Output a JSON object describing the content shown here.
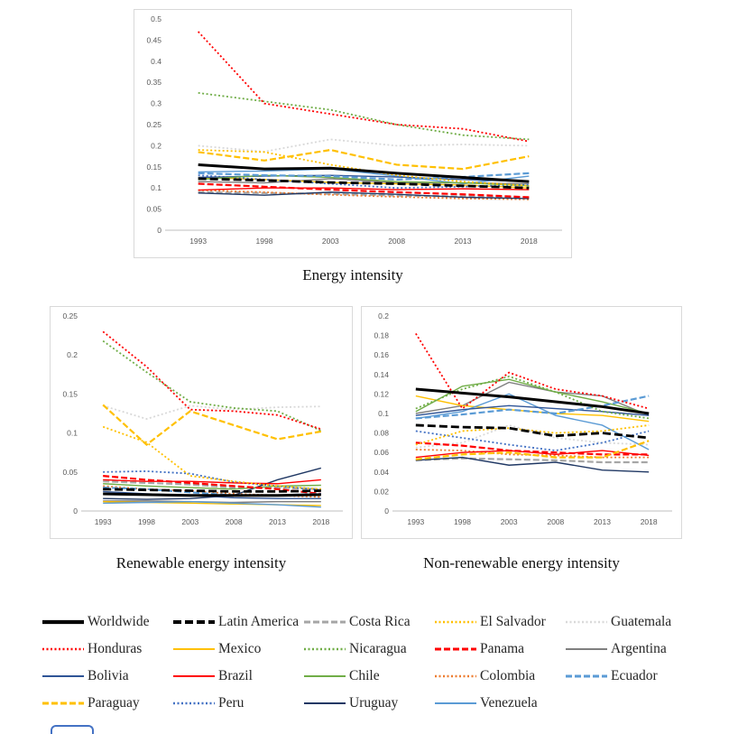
{
  "chart_data": [
    {
      "type": "line",
      "title": "Energy intensity",
      "x": [
        "1993",
        "1998",
        "2003",
        "2008",
        "2013",
        "2018"
      ],
      "ylim": [
        0,
        0.5
      ],
      "yticks": [
        0,
        0.05,
        0.1,
        0.15,
        0.2,
        0.25,
        0.3,
        0.35,
        0.4,
        0.45,
        0.5
      ],
      "ytick_labels": [
        "0",
        "0.05",
        "0.1",
        "0.15",
        "0.2",
        "0.25",
        "0.3",
        "0.35",
        "0.4",
        "0.45",
        "0.5"
      ],
      "grid": false,
      "legend_position": "none",
      "series": [
        {
          "name": "Guatemala",
          "values": [
            0.2,
            0.186,
            0.215,
            0.2,
            0.203,
            0.2
          ]
        },
        {
          "name": "Costa Rica",
          "values": [
            0.09,
            0.088,
            0.086,
            0.082,
            0.08,
            0.078
          ]
        },
        {
          "name": "Argentina",
          "values": [
            0.115,
            0.112,
            0.122,
            0.112,
            0.112,
            0.11
          ]
        },
        {
          "name": "Mexico",
          "values": [
            0.125,
            0.12,
            0.113,
            0.11,
            0.107,
            0.1
          ]
        },
        {
          "name": "Colombia",
          "values": [
            0.095,
            0.09,
            0.084,
            0.079,
            0.075,
            0.073
          ]
        },
        {
          "name": "Peru",
          "values": [
            0.13,
            0.12,
            0.11,
            0.1,
            0.103,
            0.108
          ]
        },
        {
          "name": "Uruguay",
          "values": [
            0.088,
            0.083,
            0.09,
            0.085,
            0.078,
            0.075
          ]
        },
        {
          "name": "Venezuela",
          "values": [
            0.138,
            0.14,
            0.145,
            0.128,
            0.11,
            0.128
          ]
        },
        {
          "name": "Bolivia",
          "values": [
            0.125,
            0.128,
            0.13,
            0.126,
            0.12,
            0.115
          ]
        },
        {
          "name": "Chile",
          "values": [
            0.12,
            0.13,
            0.125,
            0.115,
            0.112,
            0.105
          ]
        },
        {
          "name": "Brazil",
          "values": [
            0.095,
            0.1,
            0.1,
            0.096,
            0.098,
            0.096
          ]
        },
        {
          "name": "Panama",
          "values": [
            0.11,
            0.103,
            0.096,
            0.09,
            0.085,
            0.078
          ]
        },
        {
          "name": "Ecuador",
          "values": [
            0.135,
            0.13,
            0.128,
            0.12,
            0.126,
            0.135
          ]
        },
        {
          "name": "Paraguay",
          "values": [
            0.185,
            0.165,
            0.19,
            0.155,
            0.145,
            0.175
          ]
        },
        {
          "name": "El Salvador",
          "values": [
            0.19,
            0.185,
            0.155,
            0.13,
            0.115,
            0.105
          ]
        },
        {
          "name": "Nicaragua",
          "values": [
            0.325,
            0.305,
            0.285,
            0.25,
            0.225,
            0.215
          ]
        },
        {
          "name": "Honduras",
          "values": [
            0.47,
            0.3,
            0.275,
            0.25,
            0.24,
            0.21
          ]
        },
        {
          "name": "Latin America",
          "values": [
            0.122,
            0.118,
            0.113,
            0.11,
            0.105,
            0.1
          ]
        },
        {
          "name": "Worldwide",
          "values": [
            0.155,
            0.145,
            0.147,
            0.135,
            0.125,
            0.115
          ]
        }
      ]
    },
    {
      "type": "line",
      "title": "Renewable energy intensity",
      "x": [
        "1993",
        "1998",
        "2003",
        "2008",
        "2013",
        "2018"
      ],
      "ylim": [
        0,
        0.25
      ],
      "yticks": [
        0,
        0.05,
        0.1,
        0.15,
        0.2,
        0.25
      ],
      "ytick_labels": [
        "0",
        "0.05",
        "0.1",
        "0.15",
        "0.2",
        "0.25"
      ],
      "grid": false,
      "legend_position": "none",
      "series": [
        {
          "name": "Guatemala",
          "values": [
            0.135,
            0.118,
            0.135,
            0.13,
            0.133,
            0.134
          ]
        },
        {
          "name": "Costa Rica",
          "values": [
            0.038,
            0.036,
            0.034,
            0.03,
            0.03,
            0.028
          ]
        },
        {
          "name": "Argentina",
          "values": [
            0.013,
            0.013,
            0.012,
            0.011,
            0.012,
            0.012
          ]
        },
        {
          "name": "Mexico",
          "values": [
            0.012,
            0.011,
            0.01,
            0.009,
            0.008,
            0.007
          ]
        },
        {
          "name": "Colombia",
          "values": [
            0.032,
            0.028,
            0.026,
            0.022,
            0.02,
            0.018
          ]
        },
        {
          "name": "Peru",
          "values": [
            0.05,
            0.051,
            0.048,
            0.037,
            0.032,
            0.027
          ]
        },
        {
          "name": "Uruguay",
          "values": [
            0.016,
            0.015,
            0.016,
            0.02,
            0.04,
            0.055
          ]
        },
        {
          "name": "Venezuela",
          "values": [
            0.01,
            0.011,
            0.012,
            0.01,
            0.008,
            0.005
          ]
        },
        {
          "name": "Bolivia",
          "values": [
            0.025,
            0.022,
            0.02,
            0.017,
            0.016,
            0.016
          ]
        },
        {
          "name": "Chile",
          "values": [
            0.035,
            0.032,
            0.03,
            0.028,
            0.032,
            0.033
          ]
        },
        {
          "name": "Brazil",
          "values": [
            0.04,
            0.038,
            0.038,
            0.036,
            0.035,
            0.04
          ]
        },
        {
          "name": "Panama",
          "values": [
            0.045,
            0.04,
            0.036,
            0.032,
            0.028,
            0.022
          ]
        },
        {
          "name": "Ecuador",
          "values": [
            0.03,
            0.028,
            0.024,
            0.02,
            0.02,
            0.022
          ]
        },
        {
          "name": "Paraguay",
          "values": [
            0.136,
            0.085,
            0.128,
            0.11,
            0.092,
            0.102
          ]
        },
        {
          "name": "El Salvador",
          "values": [
            0.108,
            0.088,
            0.045,
            0.038,
            0.032,
            0.028
          ]
        },
        {
          "name": "Nicaragua",
          "values": [
            0.218,
            0.178,
            0.14,
            0.132,
            0.128,
            0.103
          ]
        },
        {
          "name": "Honduras",
          "values": [
            0.23,
            0.185,
            0.13,
            0.128,
            0.123,
            0.105
          ]
        },
        {
          "name": "Latin America",
          "values": [
            0.028,
            0.027,
            0.026,
            0.025,
            0.025,
            0.026
          ]
        },
        {
          "name": "Worldwide",
          "values": [
            0.022,
            0.021,
            0.02,
            0.02,
            0.02,
            0.021
          ]
        }
      ]
    },
    {
      "type": "line",
      "title": "Non-renewable energy intensity",
      "x": [
        "1993",
        "1998",
        "2003",
        "2008",
        "2013",
        "2018"
      ],
      "ylim": [
        0,
        0.2
      ],
      "yticks": [
        0,
        0.02,
        0.04,
        0.06,
        0.08,
        0.1,
        0.12,
        0.14,
        0.16,
        0.18,
        0.2
      ],
      "ytick_labels": [
        "0",
        "0.02",
        "0.04",
        "0.06",
        "0.08",
        "0.1",
        "0.12",
        "0.14",
        "0.16",
        "0.18",
        "0.2"
      ],
      "grid": false,
      "legend_position": "none",
      "series": [
        {
          "name": "Guatemala",
          "values": [
            0.065,
            0.07,
            0.088,
            0.075,
            0.07,
            0.068
          ]
        },
        {
          "name": "Costa Rica",
          "values": [
            0.052,
            0.054,
            0.053,
            0.052,
            0.05,
            0.05
          ]
        },
        {
          "name": "Argentina",
          "values": [
            0.1,
            0.108,
            0.132,
            0.122,
            0.118,
            0.098
          ]
        },
        {
          "name": "Mexico",
          "values": [
            0.118,
            0.108,
            0.104,
            0.1,
            0.098,
            0.092
          ]
        },
        {
          "name": "Colombia",
          "values": [
            0.063,
            0.062,
            0.058,
            0.057,
            0.055,
            0.055
          ]
        },
        {
          "name": "Peru",
          "values": [
            0.082,
            0.075,
            0.068,
            0.062,
            0.07,
            0.082
          ]
        },
        {
          "name": "Uruguay",
          "values": [
            0.052,
            0.055,
            0.047,
            0.05,
            0.042,
            0.04
          ]
        },
        {
          "name": "Venezuela",
          "values": [
            0.095,
            0.102,
            0.12,
            0.098,
            0.088,
            0.063
          ]
        },
        {
          "name": "Bolivia",
          "values": [
            0.098,
            0.104,
            0.108,
            0.105,
            0.102,
            0.098
          ]
        },
        {
          "name": "Chile",
          "values": [
            0.102,
            0.128,
            0.135,
            0.122,
            0.112,
            0.1
          ]
        },
        {
          "name": "Brazil",
          "values": [
            0.055,
            0.06,
            0.062,
            0.058,
            0.062,
            0.057
          ]
        },
        {
          "name": "Panama",
          "values": [
            0.07,
            0.067,
            0.062,
            0.06,
            0.058,
            0.058
          ]
        },
        {
          "name": "Ecuador",
          "values": [
            0.095,
            0.099,
            0.104,
            0.1,
            0.108,
            0.118
          ]
        },
        {
          "name": "Paraguay",
          "values": [
            0.053,
            0.058,
            0.06,
            0.055,
            0.055,
            0.072
          ]
        },
        {
          "name": "El Salvador",
          "values": [
            0.068,
            0.082,
            0.085,
            0.08,
            0.082,
            0.088
          ]
        },
        {
          "name": "Nicaragua",
          "values": [
            0.105,
            0.125,
            0.138,
            0.122,
            0.102,
            0.095
          ]
        },
        {
          "name": "Honduras",
          "values": [
            0.182,
            0.105,
            0.142,
            0.125,
            0.118,
            0.105
          ]
        },
        {
          "name": "Latin America",
          "values": [
            0.088,
            0.086,
            0.085,
            0.077,
            0.08,
            0.075
          ]
        },
        {
          "name": "Worldwide",
          "values": [
            0.125,
            0.121,
            0.117,
            0.112,
            0.107,
            0.1
          ]
        }
      ]
    }
  ],
  "series_styles": {
    "Worldwide": {
      "color": "#000000",
      "width": 3,
      "dash": ""
    },
    "Latin America": {
      "color": "#000000",
      "width": 2.8,
      "dash": "9 4"
    },
    "Costa Rica": {
      "color": "#A6A6A6",
      "width": 2.2,
      "dash": "7 3"
    },
    "El Salvador": {
      "color": "#FFC000",
      "width": 1.8,
      "dash": "2 2.5"
    },
    "Guatemala": {
      "color": "#D9D9D9",
      "width": 1.8,
      "dash": "2 2.5"
    },
    "Honduras": {
      "color": "#FF0000",
      "width": 1.8,
      "dash": "2 2.5"
    },
    "Mexico": {
      "color": "#FFC000",
      "width": 1.4,
      "dash": ""
    },
    "Nicaragua": {
      "color": "#70AD47",
      "width": 1.8,
      "dash": "2 2.5"
    },
    "Panama": {
      "color": "#FF0000",
      "width": 2.2,
      "dash": "7 3"
    },
    "Argentina": {
      "color": "#7F7F7F",
      "width": 1.4,
      "dash": ""
    },
    "Bolivia": {
      "color": "#2F5496",
      "width": 1.4,
      "dash": ""
    },
    "Brazil": {
      "color": "#FF0000",
      "width": 1.4,
      "dash": ""
    },
    "Chile": {
      "color": "#70AD47",
      "width": 1.4,
      "dash": ""
    },
    "Colombia": {
      "color": "#ED7D31",
      "width": 1.8,
      "dash": "2 2.5"
    },
    "Ecuador": {
      "color": "#5B9BD5",
      "width": 2.2,
      "dash": "7 3"
    },
    "Paraguay": {
      "color": "#FFC000",
      "width": 2.2,
      "dash": "7 3"
    },
    "Peru": {
      "color": "#4472C4",
      "width": 1.8,
      "dash": "2 2.5"
    },
    "Uruguay": {
      "color": "#203864",
      "width": 1.4,
      "dash": ""
    },
    "Venezuela": {
      "color": "#5B9BD5",
      "width": 1.4,
      "dash": ""
    }
  },
  "legend": {
    "items": [
      "Worldwide",
      "Latin America",
      "Costa Rica",
      "El Salvador",
      "Guatemala",
      "Honduras",
      "Mexico",
      "Nicaragua",
      "Panama",
      "Argentina",
      "Bolivia",
      "Brazil",
      "Chile",
      "Colombia",
      "Ecuador",
      "Paraguay",
      "Peru",
      "Uruguay",
      "Venezuela"
    ]
  },
  "colors": {
    "chart_border": "#d9d9d9",
    "axis_line": "#bfbfbf",
    "tick_text": "#595959"
  }
}
